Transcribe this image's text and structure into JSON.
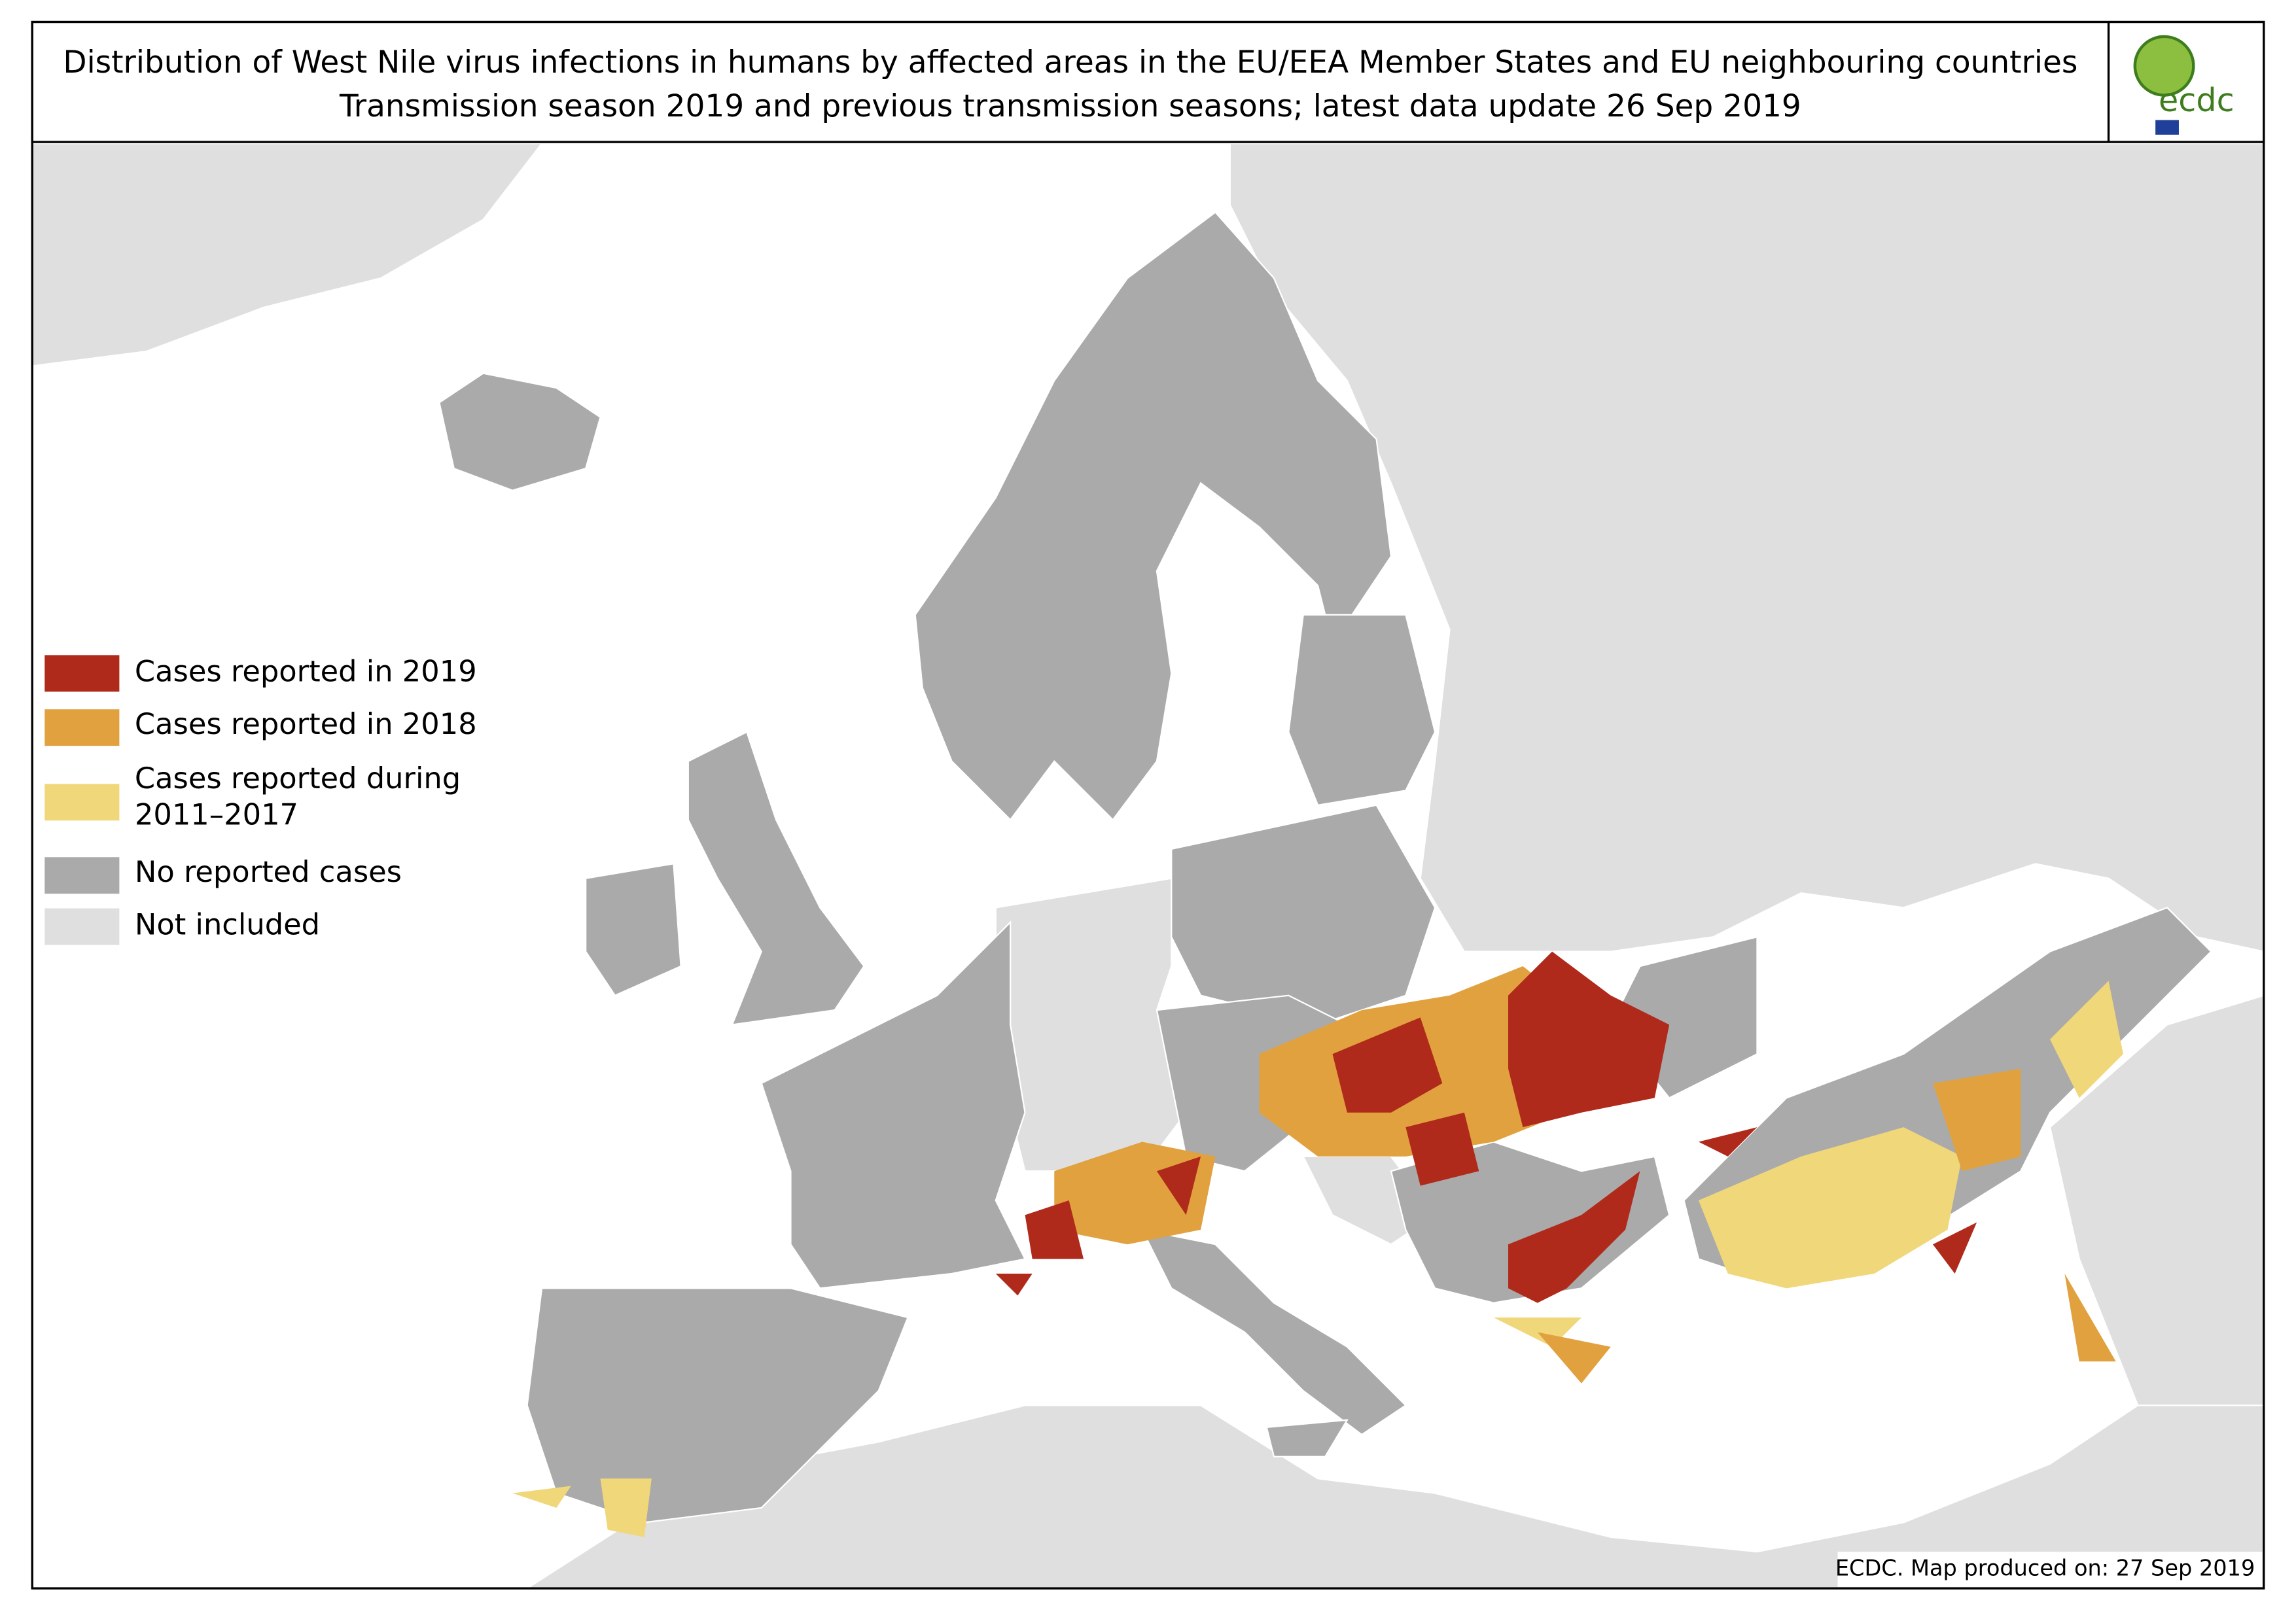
{
  "header": {
    "title": "Distribution of West Nile virus infections in humans by affected areas in the EU/EEA Member States and EU neighbouring countries",
    "subtitle": "Transmission season 2019 and previous transmission seasons; latest data update 26 Sep 2019"
  },
  "logo": {
    "text": "ecdc"
  },
  "legend": {
    "items": [
      {
        "lines": [
          "Cases reported in 2019"
        ],
        "color": "#b02a1b"
      },
      {
        "lines": [
          "Cases reported in 2018"
        ],
        "color": "#e1a13e"
      },
      {
        "lines": [
          "Cases reported during",
          "2011–2017"
        ],
        "color": "#f0d77a"
      },
      {
        "lines": [
          "No reported cases"
        ],
        "color": "#aaaaaa"
      },
      {
        "lines": [
          "Not included"
        ],
        "color": "#dfdfdf"
      }
    ]
  },
  "footer": {
    "text": "ECDC. Map produced on: 27 Sep 2019"
  }
}
